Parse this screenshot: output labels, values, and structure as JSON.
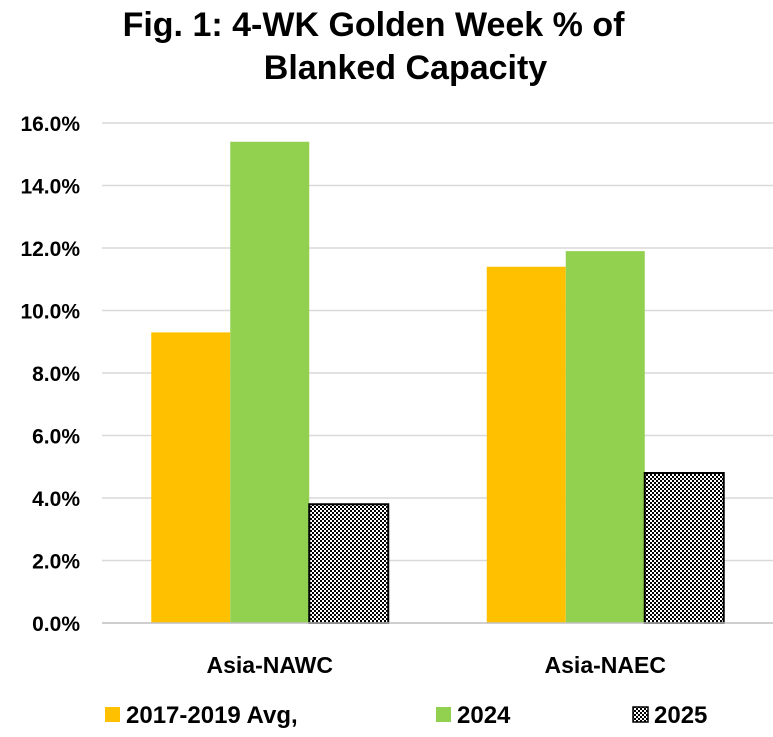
{
  "chart_data": {
    "type": "bar",
    "title_lines": [
      "Fig. 1: 4-WK Golden Week % of",
      "Blanked Capacity"
    ],
    "categories": [
      "Asia-NAWC",
      "Asia-NAEC"
    ],
    "series": [
      {
        "name": "2017-2019 Avg,",
        "values": [
          9.3,
          11.4
        ],
        "color": "#FFC000",
        "pattern": "solid"
      },
      {
        "name": "2024",
        "values": [
          15.4,
          11.9
        ],
        "color": "#92D050",
        "pattern": "solid"
      },
      {
        "name": "2025",
        "values": [
          3.8,
          4.8
        ],
        "color": "#000000",
        "pattern": "checker"
      }
    ],
    "ylim": [
      0,
      16
    ],
    "yticks": [
      0,
      2,
      4,
      6,
      8,
      10,
      12,
      14,
      16
    ],
    "ytick_labels": [
      "0.0%",
      "2.0%",
      "4.0%",
      "6.0%",
      "8.0%",
      "10.0%",
      "12.0%",
      "14.0%",
      "16.0%"
    ],
    "grid": true,
    "legend_position": "bottom",
    "xlabel": "",
    "ylabel": ""
  }
}
